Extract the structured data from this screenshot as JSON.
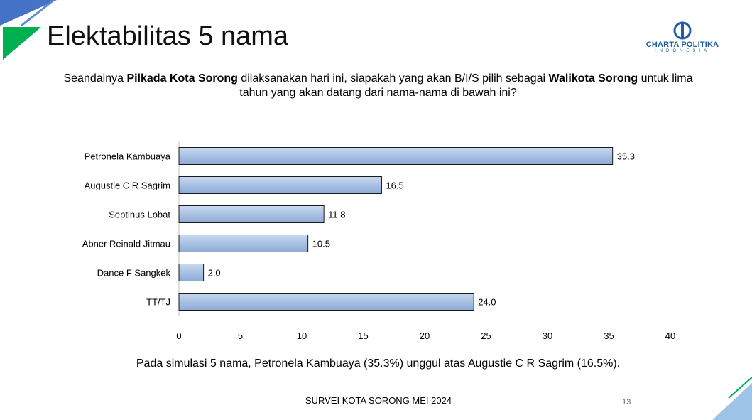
{
  "slide": {
    "title": "Elektabilitas 5 nama",
    "logo_name": "CHARTA POLITIKA",
    "logo_sub": "INDONESIA",
    "question_parts": {
      "p1": "Seandainya ",
      "b1": "Pilkada Kota Sorong",
      "p2": " dilaksanakan hari ini, siapakah yang akan B/I/S pilih sebagai ",
      "b2": "Walikota Sorong",
      "p3": " untuk lima tahun yang akan datang dari nama-nama di bawah ini?"
    },
    "conclusion": "Pada simulasi 5 nama, Petronela Kambuaya (35.3%) unggul atas Augustie C R Sagrim (16.5%).",
    "footer": "SURVEI KOTA SORONG MEI 2024",
    "page_number": "13",
    "colors": {
      "bar_fill": "#a9c1e3",
      "bar_stroke": "#1a1a1a",
      "accent_green": "#00b050",
      "accent_blue": "#4472c4"
    }
  },
  "chart_data": {
    "type": "bar",
    "orientation": "horizontal",
    "categories": [
      "Petronela Kambuaya",
      "Augustie C R Sagrim",
      "Septinus Lobat",
      "Abner Reinald Jitmau",
      "Dance F Sangkek",
      "TT/TJ"
    ],
    "values": [
      35.3,
      16.5,
      11.8,
      10.5,
      2.0,
      24.0
    ],
    "value_labels": [
      "35.3",
      "16.5",
      "11.8",
      "10.5",
      "2.0",
      "24.0"
    ],
    "xlim": [
      0,
      40
    ],
    "xticks": [
      "0",
      "5",
      "10",
      "15",
      "20",
      "25",
      "30",
      "35",
      "40"
    ],
    "grid": false
  }
}
